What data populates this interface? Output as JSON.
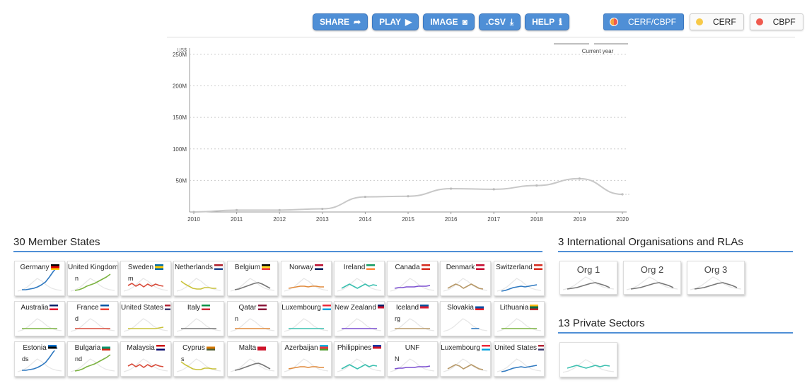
{
  "toolbar": {
    "buttons": [
      {
        "label": "SHARE",
        "icon": "share-icon",
        "glyph": "➦"
      },
      {
        "label": "PLAY",
        "icon": "play-icon",
        "glyph": "▶"
      },
      {
        "label": "IMAGE",
        "icon": "camera-icon",
        "glyph": "◙"
      },
      {
        "label": ".CSV",
        "icon": "download-icon",
        "glyph": "⤓"
      },
      {
        "label": "HELP",
        "icon": "info-icon",
        "glyph": "ℹ"
      }
    ]
  },
  "filters": [
    {
      "label": "CERF/CBPF",
      "active": true,
      "color": "#f6a23a",
      "color2": "#ef5a4e"
    },
    {
      "label": "CERF",
      "active": false,
      "color": "#f7c948"
    },
    {
      "label": "CBPF",
      "active": false,
      "color": "#ef5a4e"
    }
  ],
  "legend": {
    "label": "Current year"
  },
  "chart_data": {
    "type": "line",
    "yunit": "US$",
    "x": [
      "2010",
      "2011",
      "2012",
      "2013",
      "2014",
      "2015",
      "2016",
      "2017",
      "2018",
      "2019",
      "2020"
    ],
    "values": [
      0,
      3,
      3,
      5,
      24,
      25,
      37,
      36,
      42,
      53,
      28
    ],
    "yticks": [
      "250M",
      "200M",
      "150M",
      "100M",
      "50M"
    ],
    "ytick_values": [
      250,
      200,
      150,
      100,
      50
    ],
    "ylim": [
      0,
      260
    ],
    "grid": true,
    "line_color": "#c8c8c8"
  },
  "member_states": {
    "title": "30 Member States",
    "tiles": [
      {
        "name": "Germany",
        "flag": [
          "#000",
          "#d00",
          "#fc0"
        ],
        "extra": "",
        "color": "#2f79c0",
        "shape": "rise"
      },
      {
        "name": "United Kingdom",
        "flag": [
          "#012169",
          "#c8102e",
          "#fff"
        ],
        "extra": "n",
        "color": "#7cb342",
        "shape": "rise2"
      },
      {
        "name": "Sweden",
        "flag": [
          "#006aa7",
          "#fecc00",
          "#006aa7"
        ],
        "extra": "m",
        "color": "#d84b3a",
        "shape": "wave"
      },
      {
        "name": "Netherlands",
        "flag": [
          "#ae1c28",
          "#fff",
          "#21468b"
        ],
        "extra": "",
        "color": "#c9c23a",
        "shape": "dip"
      },
      {
        "name": "Belgium",
        "flag": [
          "#000",
          "#fdda24",
          "#ef3340"
        ],
        "extra": "",
        "color": "#777",
        "shape": "hump"
      },
      {
        "name": "Norway",
        "flag": [
          "#ba0c2f",
          "#fff",
          "#00205b"
        ],
        "extra": "",
        "color": "#e08a3c",
        "shape": "flat"
      },
      {
        "name": "Ireland",
        "flag": [
          "#169b62",
          "#fff",
          "#ff883e"
        ],
        "extra": "",
        "color": "#3cc0b0",
        "shape": "wave2"
      },
      {
        "name": "Canada",
        "flag": [
          "#d52b1e",
          "#fff",
          "#d52b1e"
        ],
        "extra": "",
        "color": "#7b4fd0",
        "shape": "flat2"
      },
      {
        "name": "Denmark",
        "flag": [
          "#c60c30",
          "#fff",
          "#c60c30"
        ],
        "extra": "",
        "color": "#b89a6a",
        "shape": "humps"
      },
      {
        "name": "Switzerland",
        "flag": [
          "#d52b1e",
          "#fff",
          "#d52b1e"
        ],
        "extra": "",
        "color": "#2f79c0",
        "shape": "step"
      },
      {
        "name": "Australia",
        "flag": [
          "#012169",
          "#fff",
          "#e4002b"
        ],
        "extra": "",
        "color": "#7cb342",
        "shape": "flatlow"
      },
      {
        "name": "France",
        "flag": [
          "#0055a4",
          "#fff",
          "#ef4135"
        ],
        "extra": "d",
        "color": "#d84b3a",
        "shape": "flatlow"
      },
      {
        "name": "United States",
        "flag": [
          "#b22234",
          "#fff",
          "#3c3b6e"
        ],
        "extra": "",
        "color": "#c9c23a",
        "shape": "tail"
      },
      {
        "name": "Italy",
        "flag": [
          "#009246",
          "#fff",
          "#ce2b37"
        ],
        "extra": "",
        "color": "#777",
        "shape": "flatlow"
      },
      {
        "name": "Qatar",
        "flag": [
          "#8a1538",
          "#fff",
          "#8a1538"
        ],
        "extra": "n",
        "color": "#e08a3c",
        "shape": "flatlow"
      },
      {
        "name": "Luxembourg",
        "flag": [
          "#ed2939",
          "#fff",
          "#00a1de"
        ],
        "extra": "",
        "color": "#3cc0b0",
        "shape": "flatlow"
      },
      {
        "name": "New Zealand",
        "flag": [
          "#012169",
          "#c8102e",
          "#fff"
        ],
        "extra": "",
        "color": "#7b4fd0",
        "shape": "flatlow"
      },
      {
        "name": "Iceland",
        "flag": [
          "#02529c",
          "#dc1e35",
          "#fff"
        ],
        "extra": "rg",
        "color": "#b89a6a",
        "shape": "flatlow"
      },
      {
        "name": "Slovakia",
        "flag": [
          "#fff",
          "#0b4ea2",
          "#ee1c25"
        ],
        "extra": "",
        "color": "#2f79c0",
        "shape": "seg"
      },
      {
        "name": "Lithuania",
        "flag": [
          "#fdb913",
          "#006a44",
          "#c1272d"
        ],
        "extra": "",
        "color": "#7cb342",
        "shape": "flatlow"
      },
      {
        "name": "Estonia",
        "flag": [
          "#0072ce",
          "#000",
          "#fff"
        ],
        "extra": "ds",
        "color": "#2f79c0",
        "shape": "rise"
      },
      {
        "name": "Bulgaria",
        "flag": [
          "#fff",
          "#00966e",
          "#d62612"
        ],
        "extra": "nd",
        "color": "#7cb342",
        "shape": "rise2"
      },
      {
        "name": "Malaysia",
        "flag": [
          "#cc0001",
          "#fff",
          "#010066"
        ],
        "extra": "",
        "color": "#d84b3a",
        "shape": "wave"
      },
      {
        "name": "Cyprus",
        "flag": [
          "#fff",
          "#d57800",
          "#4e5b31"
        ],
        "extra": "s",
        "color": "#c9c23a",
        "shape": "dip"
      },
      {
        "name": "Malta",
        "flag": [
          "#fff",
          "#cf142b",
          "#cf142b"
        ],
        "extra": "",
        "color": "#777",
        "shape": "hump"
      },
      {
        "name": "Azerbaijan",
        "flag": [
          "#00b5e2",
          "#ef3340",
          "#509e2f"
        ],
        "extra": "",
        "color": "#e08a3c",
        "shape": "flat"
      },
      {
        "name": "Philippines",
        "flag": [
          "#0038a8",
          "#ce1126",
          "#fff"
        ],
        "extra": "",
        "color": "#3cc0b0",
        "shape": "wave2"
      },
      {
        "name": "UNF",
        "flag": [],
        "extra": "N",
        "color": "#7b4fd0",
        "shape": "flat2"
      },
      {
        "name": "Luxembourg",
        "flag": [
          "#ed2939",
          "#fff",
          "#00a1de"
        ],
        "extra": "",
        "color": "#b89a6a",
        "shape": "humps"
      },
      {
        "name": "United States",
        "flag": [
          "#b22234",
          "#fff",
          "#3c3b6e"
        ],
        "extra": "",
        "color": "#2f79c0",
        "shape": "step"
      }
    ]
  },
  "organisations": {
    "title": "3 International Organisations and RLAs",
    "tiles": [
      {
        "name": "Org 1"
      },
      {
        "name": "Org 2"
      },
      {
        "name": "Org 3"
      }
    ],
    "color": "#777"
  },
  "private": {
    "title": "13 Private Sectors",
    "color": "#3cc0b0"
  }
}
